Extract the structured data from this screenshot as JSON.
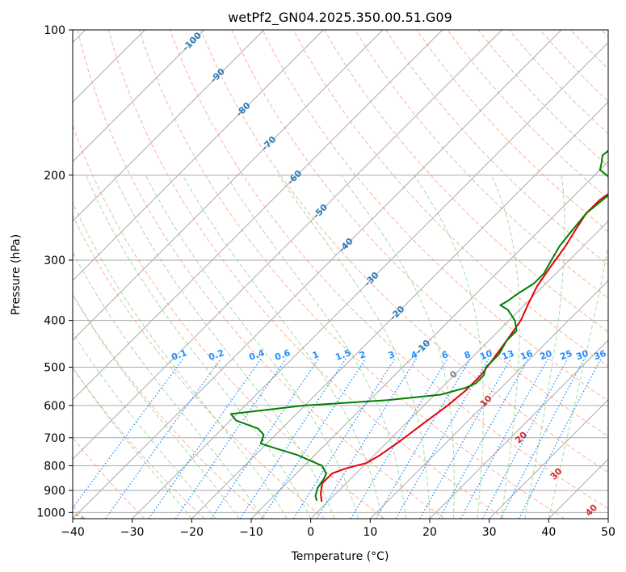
{
  "chart_data": {
    "type": "line",
    "title": "wetPf2_GN04.2025.350.00.51.G09",
    "xlabel": "Temperature (°C)",
    "ylabel": "Pressure (hPa)",
    "xlim": [
      -40,
      50
    ],
    "ylim": [
      1030,
      100
    ],
    "x_ticks": [
      "−40",
      "−30",
      "−20",
      "−10",
      "0",
      "10",
      "20",
      "30",
      "40",
      "50"
    ],
    "y_ticks": [
      "100",
      "200",
      "300",
      "400",
      "500",
      "600",
      "700",
      "800",
      "900",
      "1000"
    ],
    "isobars": [
      200,
      300,
      400,
      500,
      600,
      700,
      800,
      900,
      1000
    ],
    "dry_adiabat_labels": [
      "-100",
      "-90",
      "-80",
      "-70",
      "-60",
      "-50",
      "-40",
      "-30",
      "-20",
      "-10",
      "0",
      "10",
      "20",
      "30",
      "40"
    ],
    "mixing_ratio_labels": [
      "0.1",
      "0.2",
      "0.4",
      "0.6",
      "1",
      "1.5",
      "2",
      "3",
      "4",
      "6",
      "8",
      "10",
      "13",
      "16",
      "20",
      "25",
      "30",
      "36"
    ],
    "mixing_ratio_values": [
      0.1,
      0.2,
      0.4,
      0.6,
      1,
      1.5,
      2,
      3,
      4,
      6,
      8,
      10,
      13,
      16,
      20,
      25,
      30,
      36
    ],
    "series": [
      {
        "name": "Temperature",
        "color": "#e8000b",
        "points": [
          [
            -1,
            950
          ],
          [
            -2.5,
            915
          ],
          [
            -4,
            870
          ],
          [
            -4,
            830
          ],
          [
            -2.5,
            810
          ],
          [
            0,
            790
          ],
          [
            1,
            760
          ],
          [
            2,
            710
          ],
          [
            3,
            650
          ],
          [
            4,
            600
          ],
          [
            4.5,
            560
          ],
          [
            4.5,
            520
          ],
          [
            4,
            490
          ],
          [
            3,
            440
          ],
          [
            2,
            400
          ],
          [
            0.5,
            370
          ],
          [
            -1,
            340
          ],
          [
            -2,
            310
          ],
          [
            -3,
            280
          ],
          [
            -4,
            260
          ],
          [
            -5,
            240
          ],
          [
            -5,
            225
          ],
          [
            -4,
            212
          ],
          [
            -3,
            205
          ],
          [
            -1.5,
            200
          ],
          [
            3,
            190
          ],
          [
            10,
            175
          ],
          [
            14,
            165
          ],
          [
            19,
            155
          ],
          [
            23,
            145
          ],
          [
            26,
            136
          ],
          [
            28,
            128
          ],
          [
            29,
            122
          ],
          [
            30,
            115
          ],
          [
            31,
            110
          ],
          [
            33,
            105
          ],
          [
            35,
            100
          ]
        ]
      },
      {
        "name": "Dew Point",
        "color": "#008000",
        "points": [
          [
            -2,
            945
          ],
          [
            -3,
            925
          ],
          [
            -4,
            890
          ],
          [
            -4.5,
            850
          ],
          [
            -5,
            830
          ],
          [
            -7,
            800
          ],
          [
            -13,
            760
          ],
          [
            -17,
            740
          ],
          [
            -21,
            720
          ],
          [
            -22,
            690
          ],
          [
            -24,
            670
          ],
          [
            -29,
            645
          ],
          [
            -31,
            625
          ],
          [
            -20,
            600
          ],
          [
            -7,
            585
          ],
          [
            1,
            570
          ],
          [
            4,
            552
          ],
          [
            5,
            540
          ],
          [
            5,
            520
          ],
          [
            4,
            500
          ],
          [
            4,
            470
          ],
          [
            3,
            440
          ],
          [
            3,
            420
          ],
          [
            1,
            400
          ],
          [
            -2,
            380
          ],
          [
            -4,
            372
          ],
          [
            -3.5,
            365
          ],
          [
            -3,
            352
          ],
          [
            -2,
            335
          ],
          [
            -2,
            320
          ],
          [
            -3,
            300
          ],
          [
            -4,
            280
          ],
          [
            -4.5,
            260
          ],
          [
            -5,
            240
          ],
          [
            -4.5,
            225
          ],
          [
            -4,
            212
          ],
          [
            -6,
            205
          ],
          [
            -8,
            200
          ],
          [
            -10,
            195
          ],
          [
            -11,
            188
          ],
          [
            -12,
            182
          ],
          [
            -11.5,
            172
          ],
          [
            -12,
            163
          ],
          [
            -12,
            155
          ],
          [
            -10,
            145
          ],
          [
            -7,
            132
          ],
          [
            -4,
            120
          ],
          [
            -3,
            110
          ],
          [
            -1,
            100
          ]
        ]
      }
    ],
    "colors": {
      "temperature": "#e8000b",
      "dewpoint": "#008000",
      "isobar": "#aaaaaa",
      "isotherm": "#aaaaaa",
      "dry_adiabat": "#f59a7a",
      "moist_adiabat": "#7fcc7f",
      "mixing_ratio": "#1e90ff",
      "lcl_curve": "#d2a97a",
      "adiabat_label": "#2b7bb9",
      "hot_label": "#d62728",
      "zero_label": "#7f7f7f"
    }
  }
}
